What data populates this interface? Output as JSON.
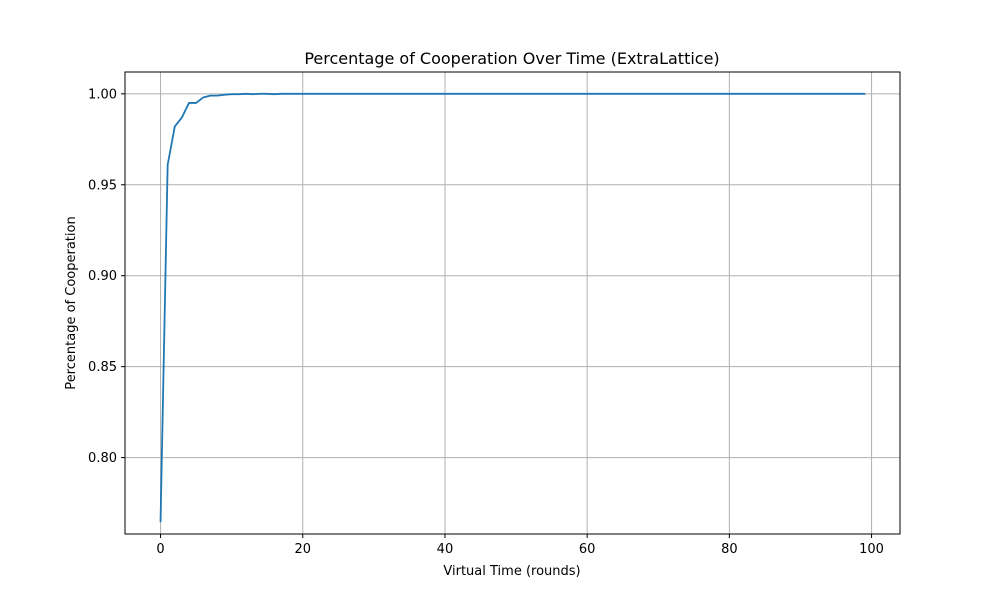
{
  "chart_data": {
    "type": "line",
    "title": "Percentage of Cooperation Over Time (ExtraLattice)",
    "xlabel": "Virtual Time (rounds)",
    "ylabel": "Percentage of Cooperation",
    "xlim": [
      -5,
      104
    ],
    "ylim": [
      0.758,
      1.012
    ],
    "xticks": [
      0,
      20,
      40,
      60,
      80,
      100
    ],
    "xtick_labels": [
      "0",
      "20",
      "40",
      "60",
      "80",
      "100"
    ],
    "yticks": [
      0.8,
      0.85,
      0.9,
      0.95,
      1.0
    ],
    "ytick_labels": [
      "0.80",
      "0.85",
      "0.90",
      "0.95",
      "1.00"
    ],
    "grid": true,
    "line_color": "#1f77b4",
    "series": [
      {
        "x": [
          0,
          1,
          2,
          3,
          4,
          5,
          6,
          7,
          8,
          9,
          10,
          11,
          12,
          13,
          14,
          15,
          16,
          17,
          18,
          19,
          20,
          25,
          30,
          40,
          50,
          60,
          70,
          80,
          90,
          99
        ],
        "values": [
          0.765,
          0.961,
          0.982,
          0.987,
          0.995,
          0.995,
          0.998,
          0.999,
          0.999,
          0.9995,
          0.9998,
          0.9998,
          1.0,
          0.9998,
          1.0,
          1.0,
          0.9998,
          1.0,
          1.0,
          1.0,
          1.0,
          1.0,
          1.0,
          1.0,
          1.0,
          1.0,
          1.0,
          1.0,
          1.0,
          1.0
        ]
      }
    ]
  }
}
